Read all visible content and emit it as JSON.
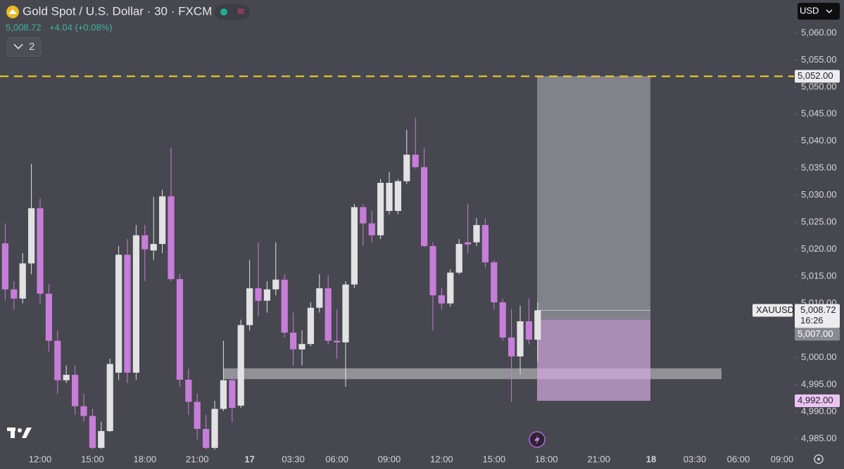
{
  "chart_data": {
    "type": "candlestick",
    "title": "Gold Spot / U.S. Dollar · 30 · FXCM",
    "change": "+4.04 (+0.08%)",
    "indicator_count": "2",
    "currency": "USD",
    "up_color": "#e2e2e4",
    "down_color": "#c77dd9",
    "categories": [
      null,
      null,
      null,
      null,
      "12:00",
      null,
      null,
      null,
      null,
      null,
      "15:00",
      null,
      null,
      null,
      null,
      null,
      "18:00",
      null,
      null,
      null,
      null,
      null,
      "21:00",
      null,
      null,
      null,
      null,
      null,
      "17",
      null,
      null,
      null,
      null,
      "03:30",
      null,
      null,
      null,
      null,
      "06:00",
      null,
      null,
      null,
      null,
      null,
      "09:00",
      null,
      null,
      null,
      null,
      null,
      "12:00",
      null,
      null,
      null,
      null,
      null,
      "15:00",
      null,
      null,
      null,
      null,
      null,
      "18:00",
      null,
      null,
      null,
      null,
      null,
      "21:00",
      null,
      null,
      null,
      null,
      null,
      "18",
      null,
      null,
      null,
      null,
      "03:30",
      null,
      null,
      null,
      null,
      "06:00",
      null,
      null,
      null,
      null,
      "09:00"
    ],
    "open": [
      5021.1,
      5012.6,
      5010.9,
      5017.4,
      5027.6,
      5011.8,
      5003.1,
      4995.8,
      4996.8,
      4991.0,
      4989.2,
      4983.3,
      4986.4,
      4997.2,
      5019.0,
      4997.2,
      5022.6,
      5019.8,
      5021.0,
      5029.8,
      5014.5,
      4995.9,
      4991.8,
      4986.8,
      4983.3,
      4990.5,
      4995.8,
      4991.1,
      5006.0,
      5012.8,
      5010.5,
      5012.6,
      5014.4,
      5004.6,
      5001.5,
      5002.5,
      5009.2,
      5012.8,
      5003.1,
      5002.8,
      5013.5,
      5027.8,
      5024.8,
      5022.6,
      5027.1,
      5027.1,
      5032.6,
      5037.5,
      5035.2,
      5020.6,
      5011.5,
      5010.0,
      5015.7,
      5021.3,
      5021.3,
      5024.5,
      5017.6,
      5010.2,
      5003.7,
      5000.2,
      5006.7,
      5003.3,
      null,
      null,
      null,
      null,
      null,
      null,
      null,
      null,
      null,
      null,
      null,
      null,
      null,
      null,
      null,
      null,
      null,
      null,
      null,
      null,
      null,
      null,
      null,
      null,
      null,
      null,
      null,
      null
    ],
    "high": [
      5024.8,
      5014.1,
      5019.3,
      5035.8,
      5029.4,
      5013.5,
      5005.0,
      4998.5,
      4998.5,
      4993.3,
      4990.5,
      4988.1,
      4999.8,
      5020.6,
      5021.9,
      5024.5,
      5024.5,
      5029.7,
      5031.0,
      5038.8,
      5015.4,
      4997.9,
      4993.3,
      4989.4,
      4992.0,
      5003.1,
      4997.2,
      5007.0,
      5018.0,
      5021.3,
      5014.1,
      5021.3,
      5015.4,
      5008.3,
      5005.0,
      5010.2,
      5015.4,
      5015.2,
      5008.9,
      5014.1,
      5028.4,
      5028.4,
      5027.1,
      5033.0,
      5034.3,
      5033.0,
      5042.1,
      5044.3,
      5038.8,
      5021.3,
      5012.8,
      5016.3,
      5021.9,
      5028.4,
      5025.8,
      5025.8,
      5018.0,
      5010.9,
      5008.9,
      5009.6,
      5010.9,
      5010.2,
      null,
      null,
      null,
      null,
      null,
      null,
      null,
      null,
      null,
      null,
      null,
      null,
      null,
      null,
      null,
      null,
      null,
      null,
      null,
      null,
      null,
      null,
      null,
      null,
      null,
      null,
      null,
      null
    ],
    "low": [
      5010.5,
      5008.9,
      5010.0,
      5015.4,
      5010.0,
      5001.1,
      4993.3,
      4995.3,
      4989.4,
      4988.1,
      4983.0,
      4983.1,
      4986.2,
      4995.9,
      4995.3,
      4995.9,
      5014.1,
      5018.0,
      5019.3,
      5014.1,
      4994.6,
      4989.4,
      4984.9,
      4983.0,
      4983.0,
      4990.1,
      4988.1,
      4990.7,
      5005.0,
      5007.6,
      5008.3,
      5011.5,
      5003.7,
      4998.5,
      4998.5,
      5002.1,
      5008.3,
      5002.4,
      4999.8,
      4994.6,
      5012.8,
      5020.6,
      5021.3,
      5021.9,
      5026.5,
      5026.5,
      5032.1,
      5034.9,
      5020.4,
      5005.0,
      5008.9,
      5009.4,
      5015.4,
      5019.3,
      5020.6,
      5016.7,
      5008.9,
      5003.1,
      4991.8,
      4996.9,
      5002.4,
      4999.2,
      null,
      null,
      null,
      null,
      null,
      null,
      null,
      null,
      null,
      null,
      null,
      null,
      null,
      null,
      null,
      null,
      null,
      null,
      null,
      null,
      null,
      null,
      null,
      null,
      null,
      null,
      null,
      null
    ],
    "close": [
      5012.6,
      5010.9,
      5017.4,
      5027.6,
      5011.8,
      5003.1,
      4995.8,
      4996.8,
      4991.0,
      4989.2,
      4983.3,
      4986.4,
      4998.8,
      5019.0,
      4997.2,
      5022.6,
      5020.0,
      5021.0,
      5029.8,
      5014.5,
      4995.9,
      4991.8,
      4986.8,
      4983.3,
      4990.5,
      4995.8,
      4990.7,
      5006.0,
      5012.8,
      5010.5,
      5012.6,
      5014.4,
      5004.6,
      5001.5,
      5002.5,
      5009.2,
      5012.8,
      5003.1,
      5002.8,
      5013.5,
      5027.8,
      5024.8,
      5022.6,
      5032.3,
      5032.3,
      5032.6,
      5037.5,
      5035.2,
      5020.6,
      5011.5,
      5010.0,
      5015.7,
      5021.0,
      5020.9,
      5024.5,
      5017.6,
      5010.2,
      5003.7,
      5000.2,
      5006.7,
      5003.3,
      5008.72,
      null,
      null,
      null,
      null,
      null,
      null,
      null,
      null,
      null,
      null,
      null,
      null,
      null,
      null,
      null,
      null,
      null,
      null,
      null,
      null,
      null,
      null,
      null,
      null,
      null,
      null,
      null,
      null
    ],
    "ylim": [
      4982.9,
      5066.1
    ],
    "yticks": [
      {
        "value": 4985,
        "label": "4,985.00"
      },
      {
        "value": 4990,
        "label": "4,990.00"
      },
      {
        "value": 4995,
        "label": "4,995.00"
      },
      {
        "value": 5000,
        "label": "5,000.00"
      },
      {
        "value": 5005,
        "label": "5,005.00"
      },
      {
        "value": 5010,
        "label": "5,010.00"
      },
      {
        "value": 5015,
        "label": "5,015.00"
      },
      {
        "value": 5020,
        "label": "5,020.00"
      },
      {
        "value": 5025,
        "label": "5,025.00"
      },
      {
        "value": 5030,
        "label": "5,030.00"
      },
      {
        "value": 5035,
        "label": "5,035.00"
      },
      {
        "value": 5040,
        "label": "5,040.00"
      },
      {
        "value": 5045,
        "label": "5,045.00"
      },
      {
        "value": 5050,
        "label": "5,050.00"
      },
      {
        "value": 5055,
        "label": "5,055.00"
      },
      {
        "value": 5060,
        "label": "5,060.00"
      }
    ],
    "price_line": {
      "value": 5052,
      "label": "5,052.00",
      "color": "#f5d327"
    },
    "zone": {
      "top": 4998,
      "bottom": 4996
    },
    "position": {
      "entry": {
        "value": 5007,
        "label": "5,007.00"
      },
      "stop": {
        "value": 4992,
        "label": "4,992.00"
      }
    },
    "last_price": {
      "symbol": "XAUUSD",
      "value": 5008.72,
      "label": "5,008.72",
      "countdown": "16:26"
    }
  }
}
